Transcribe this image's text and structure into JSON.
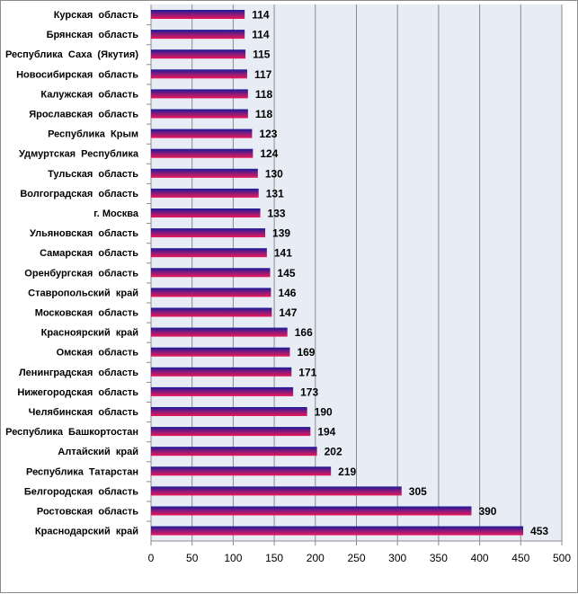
{
  "chart_data": {
    "type": "bar",
    "orientation": "horizontal",
    "categories": [
      "Курская  область",
      "Брянская  область",
      "Республика  Саха  (Якутия)",
      "Новосибирская  область",
      "Калужская  область",
      "Ярославская  область",
      "Республика  Крым",
      "Удмуртская  Республика",
      "Тульская  область",
      "Волгоградская  область",
      "г. Москва",
      "Ульяновская  область",
      "Самарская  область",
      "Оренбургская  область",
      "Ставропольский  край",
      "Московская  область",
      "Красноярский  край",
      "Омская  область",
      "Ленинградская  область",
      "Нижегородская  область",
      "Челябинская  область",
      "Республика  Башкортостан",
      "Алтайский  край",
      "Республика  Татарстан",
      "Белгородская  область",
      "Ростовская  область",
      "Краснодарский  край"
    ],
    "values": [
      114,
      114,
      115,
      117,
      118,
      118,
      123,
      124,
      130,
      131,
      133,
      139,
      141,
      145,
      146,
      147,
      166,
      169,
      171,
      173,
      190,
      194,
      202,
      219,
      305,
      390,
      453
    ],
    "xlim": [
      0,
      500
    ],
    "xticks": [
      0,
      50,
      100,
      150,
      200,
      250,
      300,
      350,
      400,
      450,
      500
    ],
    "grid": "vertical",
    "legend": "none",
    "data_labels": true,
    "colors": {
      "bar_top": "#1a1a9a",
      "bar_bottom": "#e8185a",
      "plot_background": "#e8edf5",
      "gridline": "#8a8a8a",
      "axis": "#8a8a8a"
    }
  }
}
